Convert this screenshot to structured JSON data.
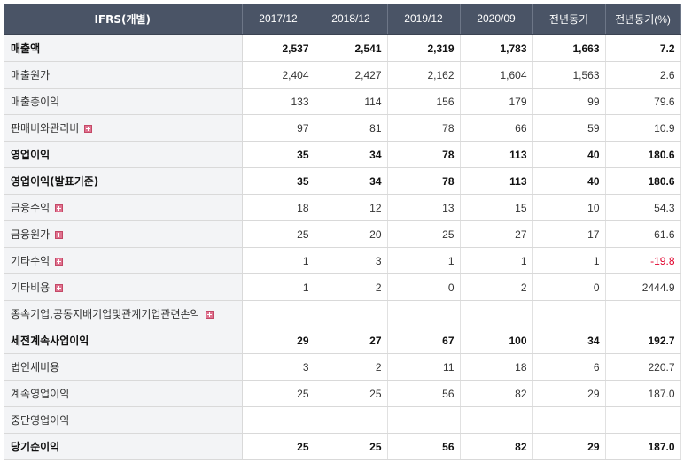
{
  "header": {
    "first": "IFRS(개별)",
    "columns": [
      "2017/12",
      "2018/12",
      "2019/12",
      "2020/09",
      "전년동기",
      "전년동기(%)"
    ]
  },
  "rows": [
    {
      "label": "매출액",
      "bold": true,
      "expand": false,
      "values": [
        "2,537",
        "2,541",
        "2,319",
        "1,783",
        "1,663",
        "7.2"
      ]
    },
    {
      "label": "매출원가",
      "bold": false,
      "expand": false,
      "values": [
        "2,404",
        "2,427",
        "2,162",
        "1,604",
        "1,563",
        "2.6"
      ]
    },
    {
      "label": "매출총이익",
      "bold": false,
      "expand": false,
      "values": [
        "133",
        "114",
        "156",
        "179",
        "99",
        "79.6"
      ]
    },
    {
      "label": "판매비와관리비",
      "bold": false,
      "expand": true,
      "values": [
        "97",
        "81",
        "78",
        "66",
        "59",
        "10.9"
      ]
    },
    {
      "label": "영업이익",
      "bold": true,
      "expand": false,
      "values": [
        "35",
        "34",
        "78",
        "113",
        "40",
        "180.6"
      ]
    },
    {
      "label": "영업이익(발표기준)",
      "bold": true,
      "expand": false,
      "values": [
        "35",
        "34",
        "78",
        "113",
        "40",
        "180.6"
      ]
    },
    {
      "label": "금융수익",
      "bold": false,
      "expand": true,
      "values": [
        "18",
        "12",
        "13",
        "15",
        "10",
        "54.3"
      ]
    },
    {
      "label": "금융원가",
      "bold": false,
      "expand": true,
      "values": [
        "25",
        "20",
        "25",
        "27",
        "17",
        "61.6"
      ]
    },
    {
      "label": "기타수익",
      "bold": false,
      "expand": true,
      "values": [
        "1",
        "3",
        "1",
        "1",
        "1",
        "-19.8"
      ]
    },
    {
      "label": "기타비용",
      "bold": false,
      "expand": true,
      "values": [
        "1",
        "2",
        "0",
        "2",
        "0",
        "2444.9"
      ]
    },
    {
      "label": "종속기업,공동지배기업및관계기업관련손익",
      "bold": false,
      "expand": true,
      "values": [
        "",
        "",
        "",
        "",
        "",
        ""
      ]
    },
    {
      "label": "세전계속사업이익",
      "bold": true,
      "expand": false,
      "values": [
        "29",
        "27",
        "67",
        "100",
        "34",
        "192.7"
      ]
    },
    {
      "label": "법인세비용",
      "bold": false,
      "expand": false,
      "values": [
        "3",
        "2",
        "11",
        "18",
        "6",
        "220.7"
      ]
    },
    {
      "label": "계속영업이익",
      "bold": false,
      "expand": false,
      "values": [
        "25",
        "25",
        "56",
        "82",
        "29",
        "187.0"
      ]
    },
    {
      "label": "중단영업이익",
      "bold": false,
      "expand": false,
      "values": [
        "",
        "",
        "",
        "",
        "",
        ""
      ]
    },
    {
      "label": "당기순이익",
      "bold": true,
      "expand": false,
      "values": [
        "25",
        "25",
        "56",
        "82",
        "29",
        "187.0"
      ]
    }
  ]
}
